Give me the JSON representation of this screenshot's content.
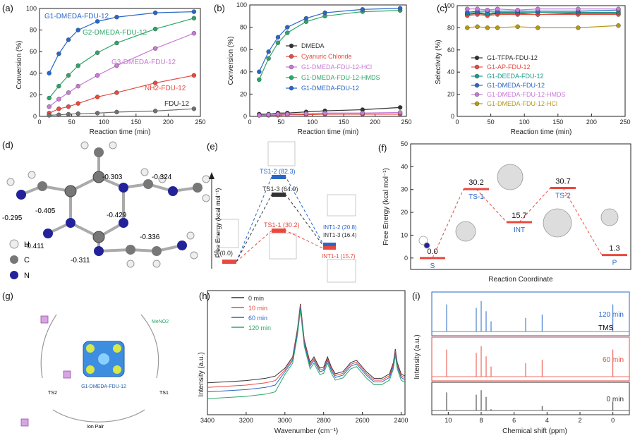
{
  "panels": {
    "a": "(a)",
    "b": "(b)",
    "c": "(c)",
    "d": "(d)",
    "e": "(e)",
    "f": "(f)",
    "g": "(g)",
    "h": "(h)",
    "i": "(i)"
  },
  "colors": {
    "black": "#333333",
    "red": "#e8493f",
    "pink": "#c77ad6",
    "green": "#2ea56a",
    "blue": "#2867c7",
    "olive": "#b59a16",
    "grey": "#707070",
    "teal": "#1c9a87"
  },
  "chart_data": [
    {
      "id": "a",
      "type": "line",
      "xlabel": "Reaction time (min)",
      "ylabel": "Conversion (%)",
      "xlim": [
        0,
        250
      ],
      "ylim": [
        0,
        100
      ],
      "xticks": [
        "0",
        "50",
        "100",
        "150",
        "200",
        "250"
      ],
      "yticks": [
        "0",
        "20",
        "40",
        "60",
        "80",
        "100"
      ],
      "series": [
        {
          "name": "G1-DMEDA-FDU-12",
          "color": "blue",
          "x": [
            15,
            30,
            45,
            60,
            90,
            120,
            180,
            240
          ],
          "y": [
            40,
            58,
            71,
            80,
            88,
            92,
            96,
            97
          ]
        },
        {
          "name": "G2-DMEDA-FDU-12",
          "color": "green",
          "x": [
            15,
            30,
            45,
            60,
            90,
            120,
            180,
            240
          ],
          "y": [
            17,
            28,
            38,
            47,
            59,
            68,
            81,
            91
          ]
        },
        {
          "name": "G3-DMEDA-FDU-12",
          "color": "pink",
          "x": [
            15,
            30,
            45,
            60,
            90,
            120,
            180,
            240
          ],
          "y": [
            9,
            16,
            22,
            28,
            38,
            47,
            63,
            77
          ]
        },
        {
          "name": "NH2-FDU-12",
          "color": "red",
          "x": [
            15,
            30,
            45,
            60,
            90,
            120,
            180,
            240
          ],
          "y": [
            3,
            7,
            9,
            12,
            18,
            22,
            31,
            38
          ]
        },
        {
          "name": "FDU-12",
          "color": "grey",
          "x": [
            15,
            30,
            45,
            60,
            90,
            120,
            180,
            240
          ],
          "y": [
            1,
            1.5,
            2,
            2.5,
            3,
            4,
            5,
            7
          ]
        }
      ],
      "labels": [
        "G1-DMEDA-FDU-12",
        "G2-DMEDA-FDU-12",
        "G3-DMEDA-FDU-12",
        "NH2-FDU-12",
        "FDU-12"
      ]
    },
    {
      "id": "b",
      "type": "line",
      "xlabel": "Reaction time (min)",
      "ylabel": "Conversion (%)",
      "xlim": [
        0,
        250
      ],
      "ylim": [
        0,
        100
      ],
      "xticks": [
        "0",
        "50",
        "100",
        "150",
        "200",
        "250"
      ],
      "yticks": [
        "0",
        "20",
        "40",
        "60",
        "80",
        "100"
      ],
      "series": [
        {
          "name": "DMEDA",
          "color": "black",
          "x": [
            15,
            30,
            45,
            60,
            90,
            120,
            180,
            240
          ],
          "y": [
            2,
            2,
            3,
            3,
            4,
            5,
            6,
            8
          ]
        },
        {
          "name": "Cyanuric Chloride",
          "color": "red",
          "x": [
            15,
            30,
            45,
            60,
            90,
            120,
            180,
            240
          ],
          "y": [
            1,
            1,
            1,
            1.5,
            1.5,
            2,
            2,
            2
          ]
        },
        {
          "name": "G1-DMEDA-FDU-12-HCl",
          "color": "pink",
          "x": [
            15,
            30,
            45,
            60,
            90,
            120,
            180,
            240
          ],
          "y": [
            1,
            1.5,
            2,
            2,
            2.5,
            3,
            3,
            3.5
          ]
        },
        {
          "name": "G1-DMEDA-FDU-12-HMDS",
          "color": "green",
          "x": [
            15,
            30,
            45,
            60,
            90,
            120,
            180,
            240
          ],
          "y": [
            33,
            52,
            66,
            75,
            85,
            90,
            94,
            95
          ]
        },
        {
          "name": "G1-DMEDA-FDU-12",
          "color": "blue",
          "x": [
            15,
            30,
            45,
            60,
            90,
            120,
            180,
            240
          ],
          "y": [
            40,
            58,
            71,
            80,
            88,
            93,
            96,
            97
          ]
        }
      ]
    },
    {
      "id": "c",
      "type": "line",
      "xlabel": "Reaction time (min)",
      "ylabel": "Selectivity (%)",
      "xlim": [
        0,
        250
      ],
      "ylim": [
        0,
        100
      ],
      "xticks": [
        "0",
        "50",
        "100",
        "150",
        "200",
        "250"
      ],
      "yticks": [
        "0",
        "20",
        "40",
        "60",
        "80",
        "100"
      ],
      "series": [
        {
          "name": "G1-TFPA-FDU-12",
          "color": "black",
          "x": [
            15,
            30,
            45,
            60,
            90,
            120,
            180,
            240
          ],
          "y": [
            92,
            93,
            92,
            93,
            93,
            92,
            93,
            93
          ]
        },
        {
          "name": "G1-AP-FDU-12",
          "color": "red",
          "x": [
            15,
            30,
            45,
            60,
            90,
            120,
            180,
            240
          ],
          "y": [
            91,
            92,
            91,
            92,
            92,
            92,
            92,
            92
          ]
        },
        {
          "name": "G1-DEEDA-FDU-12",
          "color": "teal",
          "x": [
            15,
            30,
            45,
            60,
            90,
            120,
            180,
            240
          ],
          "y": [
            93,
            94,
            93,
            94,
            94,
            94,
            94,
            94
          ]
        },
        {
          "name": "G1-DMEDA-FDU-12",
          "color": "blue",
          "x": [
            15,
            30,
            45,
            60,
            90,
            120,
            180,
            240
          ],
          "y": [
            94,
            95,
            95,
            95,
            95,
            95,
            95,
            96
          ]
        },
        {
          "name": "G1-DMEDA-FDU-12-HMDS",
          "color": "pink",
          "x": [
            15,
            30,
            45,
            60,
            90,
            120,
            180,
            240
          ],
          "y": [
            97,
            97,
            96,
            97,
            96,
            97,
            97,
            97
          ]
        },
        {
          "name": "G1-DMEDA-FDU-12-HCl",
          "color": "olive",
          "x": [
            15,
            30,
            45,
            60,
            90,
            120,
            180,
            240
          ],
          "y": [
            80,
            81,
            80,
            80,
            81,
            80,
            80,
            82
          ]
        }
      ]
    },
    {
      "id": "f",
      "type": "line",
      "xlabel": "Reaction Coordinate",
      "ylabel": "Free Energy (kcal mol⁻¹)",
      "ylim": [
        -5,
        50
      ],
      "yticks": [
        "0",
        "10",
        "20",
        "30",
        "40",
        "50"
      ],
      "states": [
        "S",
        "TS-1",
        "INT",
        "TS-2",
        "P"
      ],
      "values": [
        0.0,
        30.2,
        15.7,
        30.7,
        1.3
      ],
      "value_labels": [
        "0.0",
        "30.2",
        "15.7",
        "30.7",
        "1.3"
      ]
    },
    {
      "id": "h",
      "type": "line",
      "xlabel": "Wavenumber (cm⁻¹)",
      "ylabel": "Intensity (a.u.)",
      "xlim": [
        3400,
        2380
      ],
      "xticks": [
        "3400",
        "3200",
        "3000",
        "2800",
        "2600",
        "2400"
      ],
      "series": [
        {
          "name": "0 min",
          "color": "black"
        },
        {
          "name": "10 min",
          "color": "red"
        },
        {
          "name": "60 min",
          "color": "blue"
        },
        {
          "name": "120 min",
          "color": "green"
        }
      ],
      "peaks": {
        "x": [
          3400,
          3300,
          3200,
          3100,
          3050,
          3000,
          2960,
          2935,
          2920,
          2900,
          2870,
          2850,
          2820,
          2800,
          2780,
          2760,
          2740,
          2700,
          2660,
          2630,
          2610,
          2580,
          2540,
          2500,
          2460,
          2440,
          2430,
          2420,
          2400,
          2380
        ],
        "y": [
          22,
          23,
          24,
          26,
          28,
          35,
          45,
          70,
          92,
          60,
          40,
          45,
          35,
          36,
          45,
          36,
          30,
          32,
          40,
          42,
          38,
          32,
          26,
          26,
          30,
          40,
          52,
          40,
          30,
          28
        ]
      }
    },
    {
      "id": "i",
      "type": "line",
      "xlabel": "Chemical shift (ppm)",
      "ylabel": "Intensity (a.u.)",
      "xlim": [
        11,
        -1
      ],
      "xticks": [
        "10",
        "8",
        "6",
        "4",
        "2",
        "0"
      ],
      "series": [
        {
          "name": "120 min",
          "color": "blue"
        },
        {
          "name": "60 min",
          "color": "red"
        },
        {
          "name": "0 min",
          "color": "black"
        }
      ],
      "annotation": "TMS"
    }
  ],
  "panel_d": {
    "charges": [
      "-0.303",
      "-0.324",
      "-0.405",
      "-0.429",
      "-0.295",
      "-0.411",
      "-0.336",
      "-0.311"
    ],
    "legend": [
      "H",
      "C",
      "N"
    ]
  },
  "panel_e": {
    "ylabel": "Free Energy (kcal mol⁻¹)",
    "levels": [
      "TS1-2 (82.3)",
      "TS1-3 (64.9)",
      "TS1-1 (30.2)",
      "INT1-2 (20.8)",
      "INT1-3 (16.4)",
      "INT1-1 (15.7)",
      "S (0.0)"
    ]
  },
  "panel_g": {
    "center_label": "G1-DMEDA-FDU-12",
    "labels": [
      "TS2",
      "TS1",
      "Ion Pair",
      "MeNO2"
    ]
  }
}
